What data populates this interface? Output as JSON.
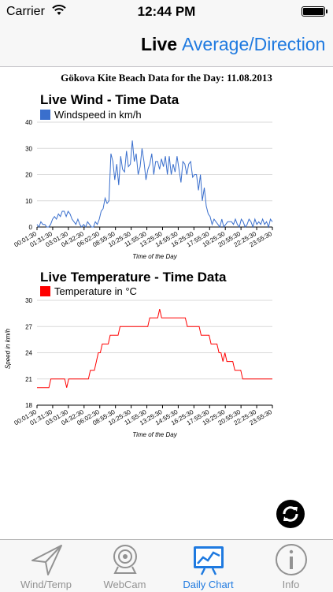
{
  "status_bar": {
    "carrier": "Carrier",
    "time": "12:44 PM"
  },
  "nav": {
    "title": "Live",
    "segment": "Average/Direction"
  },
  "page": {
    "title": "Gökova Kite Beach Data for the Day: 11.08.2013"
  },
  "colors": {
    "accent": "#1f7ae0",
    "wind": "#3a6fcd",
    "temperature": "#ff0000"
  },
  "tabs": [
    {
      "label": "Wind/Temp",
      "icon": "paper-plane-icon"
    },
    {
      "label": "WebCam",
      "icon": "webcam-icon"
    },
    {
      "label": "Daily Chart",
      "icon": "chart-icon",
      "active": true
    },
    {
      "label": "Info",
      "icon": "info-icon"
    }
  ],
  "chart_data": [
    {
      "type": "line",
      "title": "Live Wind - Time Data",
      "xlabel": "Time of the Day",
      "ylabel": "",
      "ylim": [
        0,
        40
      ],
      "yticks": [
        0,
        10,
        20,
        30,
        40
      ],
      "xticks": [
        "00:01:30",
        "01:31:30",
        "03:01:30",
        "04:32:30",
        "06:02:30",
        "08:55:30",
        "10:25:30",
        "11:55:30",
        "13:25:30",
        "14:55:30",
        "16:25:30",
        "17:55:30",
        "19:25:30",
        "20:55:30",
        "22:25:30",
        "23:55:30"
      ],
      "series": [
        {
          "name": "Windspeed in km/h",
          "values": [
            1,
            0,
            2,
            1,
            1,
            0,
            0,
            1,
            3,
            4,
            3,
            5,
            4,
            6,
            6,
            4,
            6,
            5,
            3,
            2,
            1,
            3,
            1,
            0,
            1,
            0,
            2,
            1,
            0,
            0,
            2,
            1,
            3,
            6,
            7,
            11,
            9,
            10,
            28,
            25,
            18,
            24,
            16,
            27,
            22,
            21,
            29,
            23,
            24,
            33,
            25,
            28,
            20,
            23,
            30,
            25,
            18,
            22,
            24,
            28,
            20,
            25,
            25,
            22,
            26,
            23,
            27,
            20,
            27,
            20,
            24,
            21,
            27,
            22,
            17,
            25,
            24,
            20,
            24,
            25,
            19,
            20,
            20,
            14,
            20,
            10,
            15,
            8,
            5,
            4,
            1,
            3,
            2,
            1,
            0,
            3,
            0,
            1,
            2,
            2,
            2,
            1,
            3,
            1,
            0,
            3,
            2,
            0,
            1,
            3,
            2,
            0,
            3,
            1,
            2,
            1,
            3,
            1,
            2,
            0,
            3,
            2
          ]
        }
      ]
    },
    {
      "type": "line",
      "title": "Live Temperature - Time Data",
      "xlabel": "Time of the Day",
      "ylabel": "Speed in km/h",
      "ylim": [
        18,
        30
      ],
      "yticks": [
        18,
        21,
        24,
        27,
        30
      ],
      "xticks": [
        "00:01:30",
        "01:31:30",
        "03:01:30",
        "04:32:30",
        "06:02:30",
        "08:55:30",
        "10:25:30",
        "11:55:30",
        "13:25:30",
        "14:55:30",
        "16:25:30",
        "17:55:30",
        "19:25:30",
        "20:55:30",
        "22:25:30",
        "23:55:30"
      ],
      "series": [
        {
          "name": "Temperature in °C",
          "values": [
            20,
            20,
            20,
            20,
            20,
            20,
            20,
            21,
            21,
            21,
            21,
            21,
            21,
            21,
            21,
            20,
            21,
            21,
            21,
            21,
            21,
            21,
            21,
            21,
            21,
            21,
            21,
            22,
            22,
            22,
            23,
            24,
            24,
            25,
            25,
            25,
            25,
            26,
            26,
            26,
            26,
            26,
            27,
            27,
            27,
            27,
            27,
            27,
            27,
            27,
            27,
            27,
            27,
            27,
            27,
            27,
            27,
            28,
            28,
            28,
            28,
            28,
            29,
            28,
            28,
            28,
            28,
            28,
            28,
            28,
            28,
            28,
            28,
            28,
            28,
            28,
            27,
            27,
            27,
            27,
            27,
            27,
            27,
            26,
            26,
            26,
            26,
            26,
            25,
            25,
            25,
            25,
            24,
            24,
            23,
            24,
            23,
            23,
            23,
            23,
            22,
            22,
            22,
            22,
            21,
            21,
            21,
            21,
            21,
            21,
            21,
            21,
            21,
            21,
            21,
            21,
            21,
            21,
            21,
            21
          ]
        }
      ]
    }
  ]
}
